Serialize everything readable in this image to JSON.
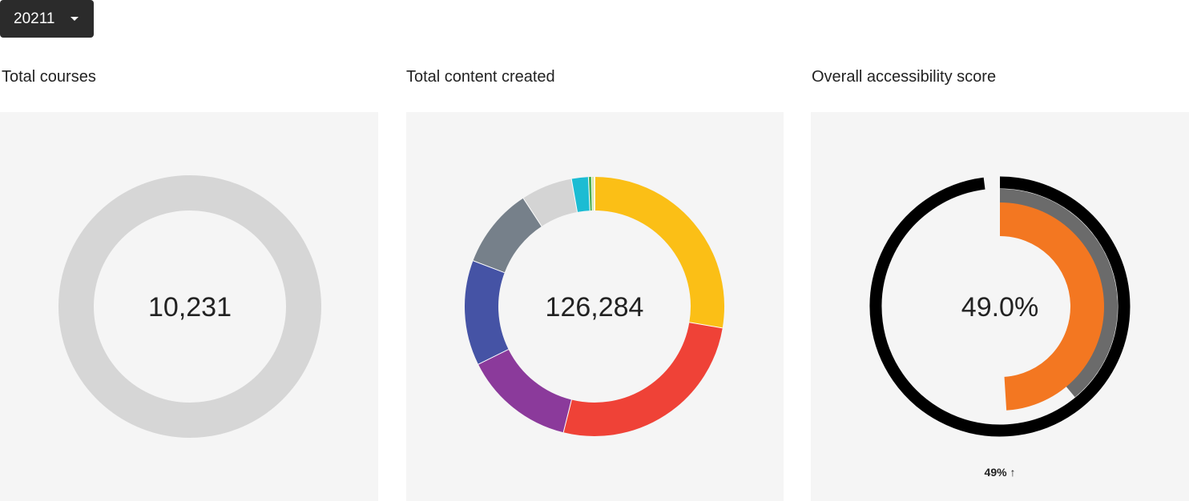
{
  "filter": {
    "label": "20211"
  },
  "panels": [
    {
      "title": "Total courses",
      "center": "10,231",
      "ring_color": "#d6d6d6"
    },
    {
      "title": "Total content created",
      "center": "126,284",
      "segments": [
        {
          "color": "#fbbf16",
          "value": 27.7
        },
        {
          "color": "#ef4237",
          "value": 26.2
        },
        {
          "color": "#8b3a9b",
          "value": 13.8
        },
        {
          "color": "#4553a5",
          "value": 13.1
        },
        {
          "color": "#76808a",
          "value": 10
        },
        {
          "color": "#d4d4d4",
          "value": 6.4
        },
        {
          "color": "#1cbcd3",
          "value": 2.1
        },
        {
          "color": "#4caf50",
          "value": 0.4
        },
        {
          "color": "#cfe3a0",
          "value": 0.3
        }
      ]
    },
    {
      "title": "Overall accessibility score",
      "center": "49.0%",
      "footer": "49% ↑",
      "range": [
        0,
        100
      ],
      "rings": [
        {
          "color": "#000000",
          "value": 98
        },
        {
          "color": "#6b6b6b",
          "value": 39
        },
        {
          "color": "#f37721",
          "value": 49
        }
      ]
    }
  ]
}
